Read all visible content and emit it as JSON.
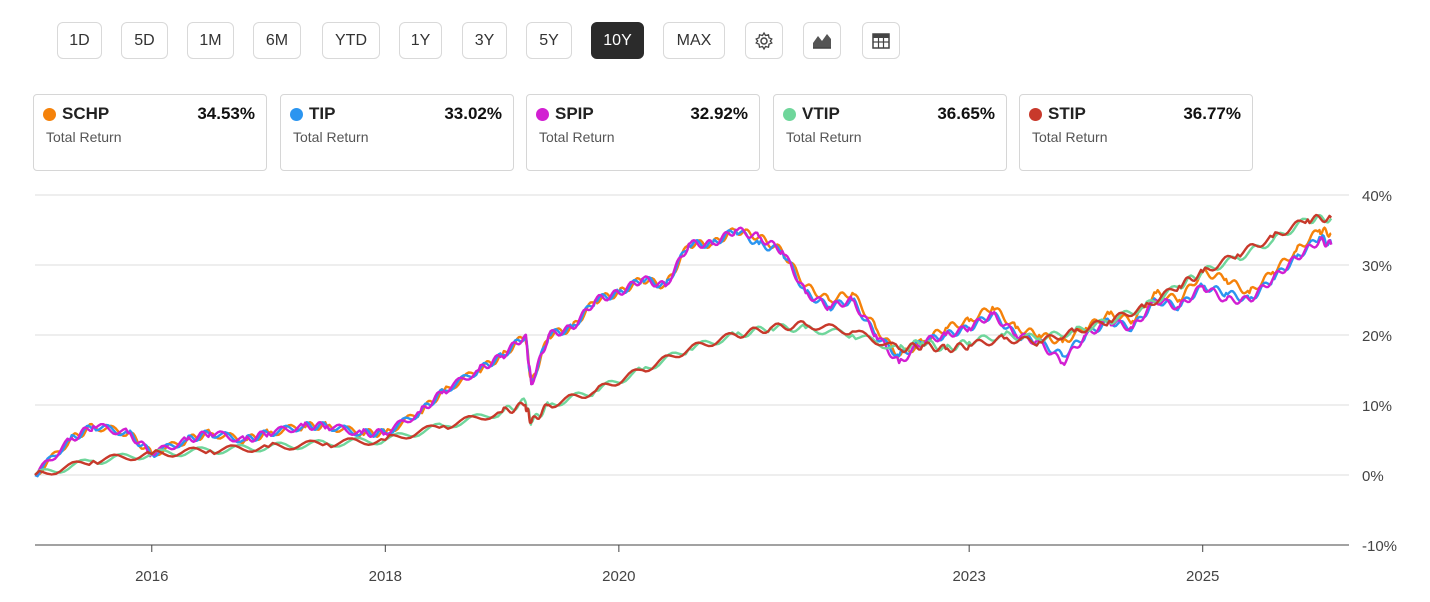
{
  "toolbar": {
    "ranges": [
      "1D",
      "5D",
      "1M",
      "6M",
      "YTD",
      "1Y",
      "3Y",
      "5Y",
      "10Y",
      "MAX"
    ],
    "active_range": "10Y",
    "icons": [
      "gear-icon",
      "chart-type-icon",
      "table-icon"
    ]
  },
  "cards": [
    {
      "ticker": "SCHP",
      "value": "34.53%",
      "label": "Total Return",
      "color": "#f5820a"
    },
    {
      "ticker": "TIP",
      "value": "33.02%",
      "label": "Total Return",
      "color": "#2b95f0"
    },
    {
      "ticker": "SPIP",
      "value": "32.92%",
      "label": "Total Return",
      "color": "#d21fd2"
    },
    {
      "ticker": "VTIP",
      "value": "36.65%",
      "label": "Total Return",
      "color": "#6fd69b"
    },
    {
      "ticker": "STIP",
      "value": "36.77%",
      "label": "Total Return",
      "color": "#c8392b"
    }
  ],
  "chart_data": {
    "type": "line",
    "title": "",
    "xlabel": "",
    "ylabel": "",
    "ylim": [
      -10,
      40
    ],
    "xlim": [
      2015.0,
      2026.15
    ],
    "y_ticks": [
      40,
      30,
      20,
      10,
      0,
      -10
    ],
    "y_tick_labels": [
      "40%",
      "30%",
      "20%",
      "10%",
      "0%",
      "-10%"
    ],
    "x_ticks": [
      2016,
      2018,
      2020,
      2023,
      2025
    ],
    "x_tick_labels": [
      "2016",
      "2018",
      "2020",
      "2023",
      "2025"
    ],
    "grid": true,
    "series": [
      {
        "name": "SCHP",
        "color": "#f5820a",
        "x": [
          2015.0,
          2015.3,
          2015.5,
          2015.8,
          2016.0,
          2016.3,
          2016.5,
          2016.8,
          2017.0,
          2017.3,
          2017.5,
          2017.8,
          2018.0,
          2018.3,
          2018.5,
          2018.8,
          2019.0,
          2019.2,
          2019.25,
          2019.4,
          2019.6,
          2019.8,
          2020.0,
          2020.2,
          2020.4,
          2020.6,
          2020.8,
          2021.0,
          2021.2,
          2021.4,
          2021.6,
          2021.8,
          2022.0,
          2022.2,
          2022.4,
          2022.6,
          2022.8,
          2023.0,
          2023.2,
          2023.4,
          2023.6,
          2023.8,
          2024.0,
          2024.2,
          2024.4,
          2024.6,
          2024.8,
          2025.0,
          2025.2,
          2025.4,
          2025.6,
          2025.8,
          2026.0,
          2026.1
        ],
        "y": [
          0,
          5,
          7,
          6,
          3,
          5,
          6,
          5,
          6,
          7,
          7,
          6,
          6,
          9,
          12,
          15,
          17,
          20,
          13,
          20,
          21,
          25,
          26,
          28,
          27,
          33,
          33,
          35,
          34,
          32,
          27,
          25,
          26,
          21,
          17,
          19,
          21,
          22,
          24,
          21,
          20,
          19,
          21,
          23,
          22,
          26,
          25,
          29,
          28,
          26,
          29,
          32,
          35,
          34.5
        ]
      },
      {
        "name": "TIP",
        "color": "#2b95f0",
        "x": [
          2015.0,
          2015.3,
          2015.5,
          2015.8,
          2016.0,
          2016.3,
          2016.5,
          2016.8,
          2017.0,
          2017.3,
          2017.5,
          2017.8,
          2018.0,
          2018.3,
          2018.5,
          2018.8,
          2019.0,
          2019.2,
          2019.25,
          2019.4,
          2019.6,
          2019.8,
          2020.0,
          2020.2,
          2020.4,
          2020.6,
          2020.8,
          2021.0,
          2021.2,
          2021.4,
          2021.6,
          2021.8,
          2022.0,
          2022.2,
          2022.4,
          2022.6,
          2022.8,
          2023.0,
          2023.2,
          2023.4,
          2023.6,
          2023.8,
          2024.0,
          2024.2,
          2024.4,
          2024.6,
          2024.8,
          2025.0,
          2025.2,
          2025.4,
          2025.6,
          2025.8,
          2026.0,
          2026.1
        ],
        "y": [
          0,
          5,
          7,
          6,
          3,
          5,
          6,
          5,
          6,
          7,
          7,
          6,
          6,
          9,
          12,
          15,
          17,
          20,
          13,
          20,
          21,
          25,
          26,
          28,
          27,
          33,
          33,
          35,
          33,
          32,
          26,
          24,
          25,
          20,
          17,
          19,
          20,
          21,
          23,
          20,
          19,
          17,
          20,
          22,
          21,
          25,
          24,
          27,
          26,
          25,
          28,
          31,
          34,
          33
        ]
      },
      {
        "name": "SPIP",
        "color": "#d21fd2",
        "x": [
          2015.0,
          2015.3,
          2015.5,
          2015.8,
          2016.0,
          2016.3,
          2016.5,
          2016.8,
          2017.0,
          2017.3,
          2017.5,
          2017.8,
          2018.0,
          2018.3,
          2018.5,
          2018.8,
          2019.0,
          2019.2,
          2019.25,
          2019.4,
          2019.6,
          2019.8,
          2020.0,
          2020.2,
          2020.4,
          2020.6,
          2020.8,
          2021.0,
          2021.2,
          2021.4,
          2021.6,
          2021.8,
          2022.0,
          2022.2,
          2022.4,
          2022.6,
          2022.8,
          2023.0,
          2023.2,
          2023.4,
          2023.6,
          2023.8,
          2024.0,
          2024.2,
          2024.4,
          2024.6,
          2024.8,
          2025.0,
          2025.2,
          2025.4,
          2025.6,
          2025.8,
          2026.0,
          2026.1
        ],
        "y": [
          0,
          5,
          7,
          6,
          3,
          5,
          6,
          5,
          6,
          7,
          7,
          6,
          6,
          9,
          12,
          15,
          17,
          20,
          13,
          20,
          21,
          25,
          26,
          28,
          27,
          33,
          33,
          35,
          34,
          32,
          26,
          24,
          25,
          20,
          16,
          19,
          20,
          21,
          23,
          20,
          19,
          16,
          20,
          22,
          21,
          25,
          24,
          27,
          25,
          25,
          28,
          31,
          33.5,
          32.9
        ]
      },
      {
        "name": "VTIP",
        "color": "#6fd69b",
        "x": [
          2015.0,
          2015.5,
          2016.0,
          2016.5,
          2017.0,
          2017.5,
          2018.0,
          2018.5,
          2019.0,
          2019.2,
          2019.25,
          2019.4,
          2019.8,
          2020.2,
          2020.6,
          2021.0,
          2021.3,
          2021.6,
          2022.0,
          2022.4,
          2022.6,
          2022.8,
          2023.0,
          2023.3,
          2023.6,
          2023.9,
          2024.2,
          2024.5,
          2024.8,
          2025.0,
          2025.3,
          2025.6,
          2025.9,
          2026.1
        ],
        "y": [
          0,
          2,
          3,
          3.5,
          4,
          4.5,
          5,
          7,
          9,
          10.5,
          7.5,
          10,
          12,
          15,
          18,
          20,
          21,
          21,
          20,
          18,
          19,
          18,
          19,
          20,
          19.5,
          20.5,
          22,
          24,
          27,
          29,
          31,
          33.5,
          36.5,
          36.65
        ]
      },
      {
        "name": "STIP",
        "color": "#c8392b",
        "x": [
          2015.0,
          2015.5,
          2016.0,
          2016.5,
          2017.0,
          2017.5,
          2018.0,
          2018.5,
          2019.0,
          2019.2,
          2019.25,
          2019.4,
          2019.8,
          2020.2,
          2020.6,
          2021.0,
          2021.3,
          2021.6,
          2022.0,
          2022.4,
          2022.6,
          2022.8,
          2023.0,
          2023.3,
          2023.6,
          2023.9,
          2024.2,
          2024.5,
          2024.8,
          2025.0,
          2025.3,
          2025.6,
          2025.9,
          2026.1
        ],
        "y": [
          0,
          2,
          3,
          3.5,
          4,
          4.5,
          5,
          7,
          9,
          10,
          7.5,
          10,
          12,
          15,
          18,
          20,
          21,
          21.5,
          20.5,
          18,
          18.5,
          18,
          18.5,
          19.5,
          19,
          20.5,
          22,
          24,
          27,
          29,
          31.5,
          34,
          36.5,
          36.77
        ]
      }
    ]
  }
}
